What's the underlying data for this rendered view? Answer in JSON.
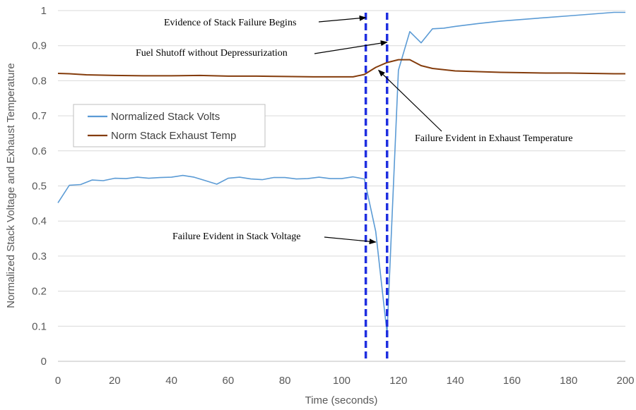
{
  "chart_data": {
    "type": "line",
    "xlabel": "Time (seconds)",
    "ylabel": "Normalized Stack Voltage and Exhaust Temperature",
    "xlim": [
      0,
      200
    ],
    "ylim": [
      0,
      1
    ],
    "x_ticks": [
      "0",
      "20",
      "40",
      "60",
      "80",
      "100",
      "120",
      "140",
      "160",
      "180",
      "200"
    ],
    "y_ticks": [
      "0",
      "0.1",
      "0.2",
      "0.3",
      "0.4",
      "0.5",
      "0.6",
      "0.7",
      "0.8",
      "0.9",
      "1"
    ],
    "grid": "horizontal",
    "legend_position": "left-middle",
    "series": [
      {
        "name": "Normalized Stack Volts",
        "color": "#5B9BD5",
        "x": [
          0,
          4,
          8,
          12,
          16,
          20,
          24,
          28,
          32,
          36,
          40,
          44,
          48,
          52,
          56,
          60,
          64,
          68,
          72,
          76,
          80,
          84,
          88,
          92,
          96,
          100,
          104,
          108,
          112,
          116,
          120,
          124,
          128,
          132,
          136,
          140,
          148,
          156,
          164,
          172,
          180,
          188,
          196,
          200
        ],
        "values": [
          0.452,
          0.502,
          0.504,
          0.517,
          0.515,
          0.522,
          0.521,
          0.525,
          0.522,
          0.524,
          0.525,
          0.53,
          0.525,
          0.515,
          0.505,
          0.522,
          0.525,
          0.52,
          0.518,
          0.524,
          0.524,
          0.52,
          0.521,
          0.525,
          0.521,
          0.521,
          0.526,
          0.52,
          0.37,
          0.08,
          0.83,
          0.94,
          0.908,
          0.948,
          0.95,
          0.955,
          0.963,
          0.97,
          0.975,
          0.98,
          0.985,
          0.99,
          0.995,
          0.995
        ]
      },
      {
        "name": "Norm Stack Exhaust Temp",
        "color": "#843C0C",
        "x": [
          0,
          4,
          10,
          20,
          30,
          40,
          50,
          60,
          70,
          80,
          90,
          100,
          104,
          108,
          112,
          116,
          120,
          124,
          128,
          132,
          140,
          148,
          156,
          164,
          172,
          180,
          188,
          196,
          200
        ],
        "values": [
          0.821,
          0.82,
          0.817,
          0.815,
          0.814,
          0.814,
          0.815,
          0.813,
          0.813,
          0.812,
          0.811,
          0.811,
          0.811,
          0.818,
          0.838,
          0.852,
          0.86,
          0.86,
          0.843,
          0.835,
          0.828,
          0.826,
          0.824,
          0.823,
          0.822,
          0.822,
          0.821,
          0.82,
          0.82
        ]
      }
    ],
    "event_lines": [
      {
        "x": 108.5,
        "color": "#1F2FE0",
        "style": "dashed"
      },
      {
        "x": 116,
        "color": "#1F2FE0",
        "style": "dashed"
      }
    ],
    "annotations": [
      {
        "text": "Evidence of Stack Failure Begins",
        "points_to": {
          "x": 108.5,
          "y": 0.98
        }
      },
      {
        "text": "Fuel Shutoff without Depressurization",
        "points_to": {
          "x": 116,
          "y": 0.91
        }
      },
      {
        "text": "Failure Evident in Exhaust Temperature",
        "points_to": {
          "x": 113,
          "y": 0.83
        }
      },
      {
        "text": "Failure Evident in Stack Voltage",
        "points_to": {
          "x": 112,
          "y": 0.34
        }
      }
    ]
  }
}
